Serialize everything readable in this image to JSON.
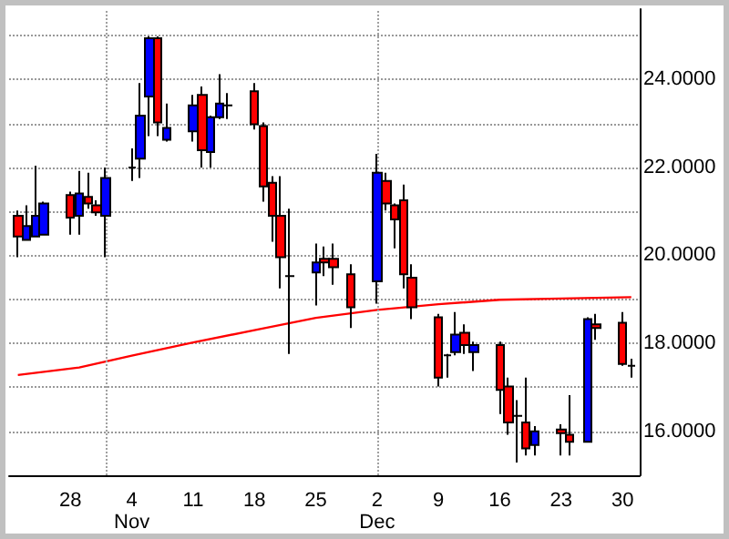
{
  "chart_data": {
    "type": "candlestick",
    "series": [
      {
        "x": [
          "--10-22",
          "--10-23",
          "--10-24",
          "--10-25",
          "--10-28",
          "--10-29",
          "--10-30",
          "--10-31",
          "--11-01",
          "--11-04",
          "--11-05",
          "--11-06",
          "--11-07",
          "--11-08",
          "--11-11",
          "--11-12",
          "--11-13",
          "--11-14",
          "--11-15",
          "--11-18",
          "--11-19",
          "--11-20",
          "--11-21",
          "--11-22",
          "--11-25",
          "--11-26",
          "--11-27",
          "--11-29",
          "--12-02",
          "--12-03",
          "--12-04",
          "--12-05",
          "--12-06",
          "--12-09",
          "--12-10",
          "--12-11",
          "--12-12",
          "--12-13",
          "--12-16",
          "--12-17",
          "--12-18",
          "--12-19",
          "--12-20",
          "--12-23",
          "--12-24",
          "--12-26",
          "--12-27",
          "--12-30",
          "--12-31"
        ],
        "ohlc": [
          [
            20.9,
            21.02,
            19.96,
            20.43
          ],
          [
            20.35,
            21.14,
            20.35,
            20.67
          ],
          [
            20.43,
            22.04,
            20.43,
            20.9
          ],
          [
            20.47,
            21.22,
            20.47,
            21.18
          ],
          [
            21.37,
            21.45,
            20.47,
            20.86
          ],
          [
            20.9,
            21.92,
            20.47,
            21.41
          ],
          [
            21.33,
            21.88,
            21.06,
            21.18
          ],
          [
            21.14,
            21.25,
            20.9,
            20.98
          ],
          [
            20.9,
            22.0,
            19.96,
            21.76
          ],
          [
            22.0,
            22.43,
            21.69,
            22.0
          ],
          [
            22.2,
            23.92,
            21.76,
            23.18
          ],
          [
            23.61,
            24.98,
            22.71,
            24.94
          ],
          [
            24.94,
            24.98,
            22.71,
            23.02
          ],
          [
            22.63,
            23.45,
            22.59,
            22.9
          ],
          [
            22.82,
            23.65,
            22.59,
            23.41
          ],
          [
            23.65,
            23.84,
            22.0,
            22.39
          ],
          [
            22.35,
            23.18,
            22.0,
            23.14
          ],
          [
            23.14,
            24.12,
            23.1,
            23.45
          ],
          [
            23.41,
            23.69,
            23.1,
            23.41
          ],
          [
            23.73,
            23.92,
            22.86,
            22.98
          ],
          [
            22.94,
            23.02,
            21.22,
            21.57
          ],
          [
            21.65,
            21.8,
            20.31,
            20.9
          ],
          [
            20.9,
            21.8,
            19.25,
            19.96
          ],
          [
            19.53,
            21.06,
            17.76,
            19.53
          ],
          [
            19.61,
            20.27,
            18.86,
            19.84
          ],
          [
            19.92,
            20.2,
            19.53,
            19.84
          ],
          [
            19.92,
            20.27,
            19.33,
            19.73
          ],
          [
            19.57,
            19.8,
            18.35,
            18.82
          ],
          [
            19.41,
            22.31,
            18.9,
            21.88
          ],
          [
            21.69,
            21.88,
            21.02,
            21.18
          ],
          [
            21.14,
            21.18,
            20.16,
            20.82
          ],
          [
            21.25,
            21.61,
            19.25,
            19.57
          ],
          [
            19.49,
            19.8,
            18.55,
            18.82
          ],
          [
            18.59,
            18.67,
            17.02,
            17.22
          ],
          [
            17.73,
            17.76,
            17.22,
            17.73
          ],
          [
            17.8,
            18.71,
            17.73,
            18.2
          ],
          [
            18.24,
            18.43,
            17.76,
            17.96
          ],
          [
            17.8,
            18.04,
            17.37,
            17.96
          ],
          [
            17.96,
            18.04,
            16.39,
            16.94
          ],
          [
            17.02,
            17.22,
            15.92,
            16.2
          ],
          [
            16.35,
            16.71,
            15.29,
            16.35
          ],
          [
            16.2,
            17.22,
            15.45,
            15.61
          ],
          [
            15.69,
            16.12,
            15.45,
            16.0
          ],
          [
            16.04,
            16.16,
            15.45,
            15.96
          ],
          [
            15.92,
            16.82,
            15.45,
            15.76
          ],
          [
            15.76,
            18.59,
            15.76,
            18.55
          ],
          [
            18.43,
            18.67,
            18.08,
            18.35
          ],
          [
            18.47,
            18.71,
            17.49,
            17.53
          ],
          [
            17.49,
            17.65,
            17.22,
            17.49
          ]
        ],
        "colors": [
          "#ff0000",
          "#0000ff",
          "#0000ff",
          "#0000ff",
          "#ff0000",
          "#0000ff",
          "#ff0000",
          "#ff0000",
          "#0000ff",
          "#000000",
          "#0000ff",
          "#0000ff",
          "#ff0000",
          "#0000ff",
          "#0000ff",
          "#ff0000",
          "#0000ff",
          "#0000ff",
          "#000000",
          "#ff0000",
          "#ff0000",
          "#ff0000",
          "#ff0000",
          "#000000",
          "#0000ff",
          "#ff0000",
          "#ff0000",
          "#ff0000",
          "#0000ff",
          "#ff0000",
          "#ff0000",
          "#ff0000",
          "#ff0000",
          "#ff0000",
          "#000000",
          "#0000ff",
          "#ff0000",
          "#0000ff",
          "#ff0000",
          "#ff0000",
          "#000000",
          "#ff0000",
          "#0000ff",
          "#ff0000",
          "#ff0000",
          "#0000ff",
          "#ff0000",
          "#ff0000",
          "#000000"
        ]
      },
      {
        "type": "line",
        "color": "#ff0000",
        "x": [
          "--10-22",
          "--10-29",
          "--11-04",
          "--11-11",
          "--11-18",
          "--11-25",
          "--12-02",
          "--12-09",
          "--12-16",
          "--12-23",
          "--12-31"
        ],
        "values": [
          17.28,
          17.45,
          17.72,
          18.02,
          18.3,
          18.58,
          18.76,
          18.89,
          18.99,
          19.02,
          19.05
        ]
      }
    ],
    "xlim": [
      "--10-21",
      "--12-31T23:00"
    ],
    "xticks": [
      {
        "value": "--10-28",
        "label": "28"
      },
      {
        "value": "--11-04",
        "label": "4\nNov"
      },
      {
        "value": "--11-11",
        "label": "11"
      },
      {
        "value": "--11-18",
        "label": "18"
      },
      {
        "value": "--11-25",
        "label": "25"
      },
      {
        "value": "--12-02",
        "label": "2\nDec"
      },
      {
        "value": "--12-09",
        "label": "9"
      },
      {
        "value": "--12-16",
        "label": "16"
      },
      {
        "value": "--12-23",
        "label": "23"
      },
      {
        "value": "--12-30",
        "label": "30"
      }
    ],
    "ylim": [
      15,
      25.6
    ],
    "yticks": [
      {
        "value": 16,
        "label": "16.0000"
      },
      {
        "value": 17,
        "label": null
      },
      {
        "value": 18,
        "label": "18.0000"
      },
      {
        "value": 19,
        "label": null
      },
      {
        "value": 20,
        "label": "20.0000"
      },
      {
        "value": 21,
        "label": null
      },
      {
        "value": 22,
        "label": "22.0000"
      },
      {
        "value": 23,
        "label": null
      },
      {
        "value": 24,
        "label": "24.0000"
      },
      {
        "value": 25,
        "label": null
      }
    ],
    "ref_lines": [
      {
        "axis": "x",
        "value": "--11-01",
        "color": "#a0a0a0",
        "line_style": "dotted"
      },
      {
        "axis": "x",
        "value": "--12-02",
        "color": "#a0a0a0",
        "line_style": "dotted"
      }
    ],
    "grid": "y",
    "line_style": "solid",
    "marker": "none"
  }
}
